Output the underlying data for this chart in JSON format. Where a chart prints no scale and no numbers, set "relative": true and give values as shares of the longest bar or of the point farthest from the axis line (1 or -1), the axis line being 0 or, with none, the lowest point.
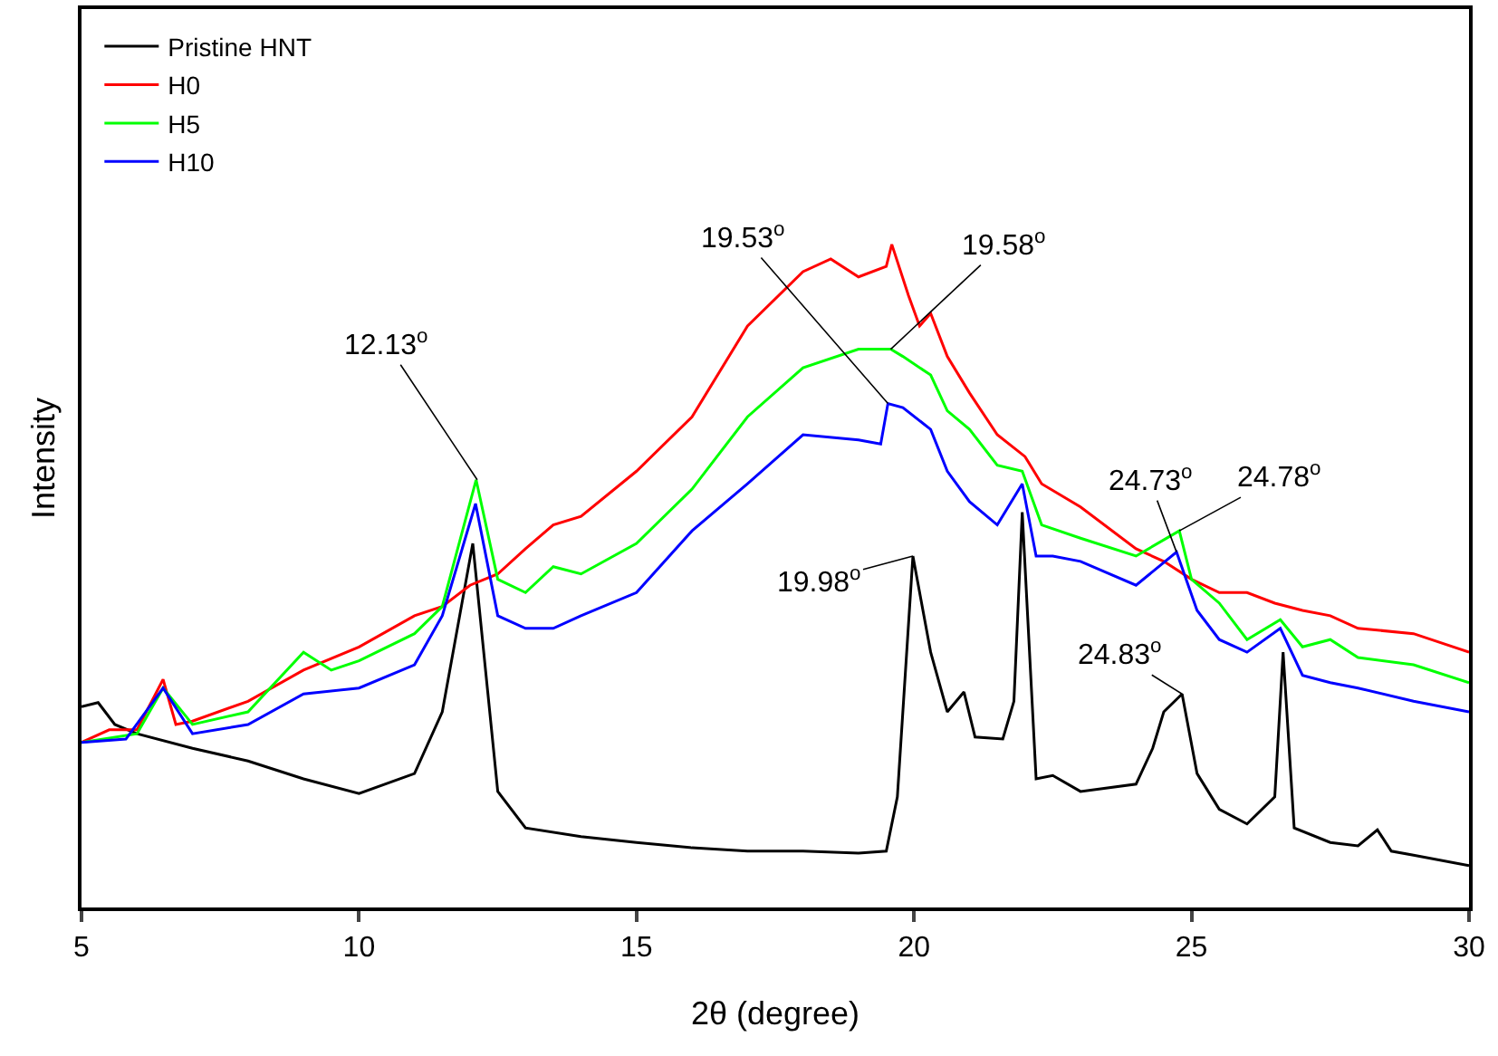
{
  "chart_data": {
    "type": "line",
    "relative": true,
    "xlabel": "2θ (degree)",
    "ylabel": "Intensity",
    "xlim": [
      5,
      30
    ],
    "xticks": [
      5,
      10,
      15,
      20,
      25,
      30
    ],
    "legend": "top left",
    "grid": false,
    "marker": "none",
    "line_style": "solid",
    "series": [
      {
        "name": "Pristine HNT",
        "color": "#000000",
        "x": [
          5,
          5.3,
          5.6,
          6,
          7,
          8,
          9,
          10,
          11,
          11.5,
          12.05,
          12.5,
          13,
          14,
          15,
          16,
          17,
          18,
          19,
          19.5,
          19.7,
          19.98,
          20.3,
          20.6,
          20.9,
          21.1,
          21.6,
          21.8,
          21.95,
          22.2,
          22.5,
          23,
          24,
          24.3,
          24.5,
          24.83,
          25.1,
          25.5,
          26,
          26.5,
          26.65,
          26.85,
          27.5,
          28,
          28.35,
          28.6,
          29,
          30
        ],
        "values": [
          0.303,
          0.309,
          0.276,
          0.262,
          0.24,
          0.221,
          0.194,
          0.172,
          0.202,
          0.295,
          0.549,
          0.175,
          0.12,
          0.107,
          0.098,
          0.09,
          0.085,
          0.085,
          0.082,
          0.085,
          0.167,
          0.53,
          0.385,
          0.295,
          0.325,
          0.257,
          0.254,
          0.311,
          0.596,
          0.194,
          0.199,
          0.175,
          0.186,
          0.24,
          0.295,
          0.322,
          0.202,
          0.148,
          0.126,
          0.167,
          0.385,
          0.12,
          0.098,
          0.093,
          0.117,
          0.085,
          0.079,
          0.063
        ]
      },
      {
        "name": "H0",
        "color": "#ff0000",
        "x": [
          5,
          5.5,
          6,
          6.47,
          6.7,
          7,
          8,
          9,
          10,
          11,
          11.5,
          12,
          12.5,
          13,
          13.5,
          14,
          15,
          16,
          17,
          18,
          18.5,
          19,
          19.5,
          19.6,
          19.9,
          20.1,
          20.3,
          20.6,
          21,
          21.5,
          22,
          22.3,
          23,
          24,
          24.5,
          25,
          25.5,
          26,
          26.5,
          27,
          27.5,
          28,
          29,
          30
        ],
        "values": [
          0.249,
          0.268,
          0.268,
          0.344,
          0.276,
          0.281,
          0.311,
          0.358,
          0.393,
          0.44,
          0.454,
          0.486,
          0.503,
          0.541,
          0.577,
          0.59,
          0.658,
          0.74,
          0.877,
          0.959,
          0.978,
          0.951,
          0.967,
          1,
          0.923,
          0.877,
          0.896,
          0.831,
          0.776,
          0.713,
          0.68,
          0.639,
          0.604,
          0.541,
          0.522,
          0.495,
          0.475,
          0.475,
          0.459,
          0.448,
          0.44,
          0.421,
          0.413,
          0.385
        ]
      },
      {
        "name": "H5",
        "color": "#00ff00",
        "x": [
          5,
          6,
          6.47,
          7,
          8,
          9,
          9.5,
          10,
          11,
          11.5,
          12.11,
          12.5,
          13,
          13.5,
          14,
          15,
          16,
          17,
          18,
          19,
          19.58,
          19.8,
          20.3,
          20.6,
          21,
          21.5,
          21.95,
          22.3,
          23,
          24,
          24.78,
          25,
          25.5,
          26,
          26.6,
          27,
          27.5,
          28,
          29,
          30
        ],
        "values": [
          0.249,
          0.262,
          0.331,
          0.276,
          0.295,
          0.385,
          0.358,
          0.372,
          0.413,
          0.454,
          0.645,
          0.495,
          0.475,
          0.514,
          0.503,
          0.549,
          0.631,
          0.74,
          0.814,
          0.842,
          0.842,
          0.831,
          0.803,
          0.749,
          0.721,
          0.667,
          0.658,
          0.577,
          0.557,
          0.53,
          0.568,
          0.495,
          0.459,
          0.404,
          0.434,
          0.393,
          0.404,
          0.377,
          0.366,
          0.339
        ]
      },
      {
        "name": "H10",
        "color": "#0000ff",
        "x": [
          5,
          5.8,
          6.47,
          7,
          8,
          9,
          10,
          11,
          11.5,
          12.1,
          12.5,
          13,
          13.5,
          14,
          15,
          16,
          17,
          18,
          19,
          19.4,
          19.53,
          19.8,
          20.3,
          20.6,
          21,
          21.5,
          21.95,
          22.2,
          22.5,
          23,
          24,
          24.73,
          25.1,
          25.5,
          26,
          26.6,
          27,
          27.5,
          28,
          29,
          30
        ],
        "values": [
          0.249,
          0.254,
          0.331,
          0.262,
          0.276,
          0.322,
          0.331,
          0.366,
          0.44,
          0.609,
          0.44,
          0.421,
          0.421,
          0.44,
          0.475,
          0.568,
          0.639,
          0.713,
          0.705,
          0.699,
          0.76,
          0.754,
          0.721,
          0.658,
          0.612,
          0.577,
          0.639,
          0.53,
          0.53,
          0.522,
          0.486,
          0.536,
          0.448,
          0.404,
          0.385,
          0.421,
          0.35,
          0.339,
          0.331,
          0.311,
          0.295
        ]
      }
    ],
    "annotations": [
      {
        "text": "12.13$^{o}$",
        "x": 12.13,
        "y": 0.645
      },
      {
        "text": "19.53$^{o}$",
        "x": 19.53,
        "y": 0.76
      },
      {
        "text": "19.58$^{o}$",
        "x": 19.58,
        "y": 0.842
      },
      {
        "text": "19.98$^{o}$",
        "x": 19.98,
        "y": 0.53
      },
      {
        "text": "24.73$^{o}$",
        "x": 24.73,
        "y": 0.536
      },
      {
        "text": "24.78$^{o}$",
        "x": 24.78,
        "y": 0.568
      },
      {
        "text": "24.83$^{o}$",
        "x": 24.83,
        "y": 0.322
      }
    ]
  }
}
